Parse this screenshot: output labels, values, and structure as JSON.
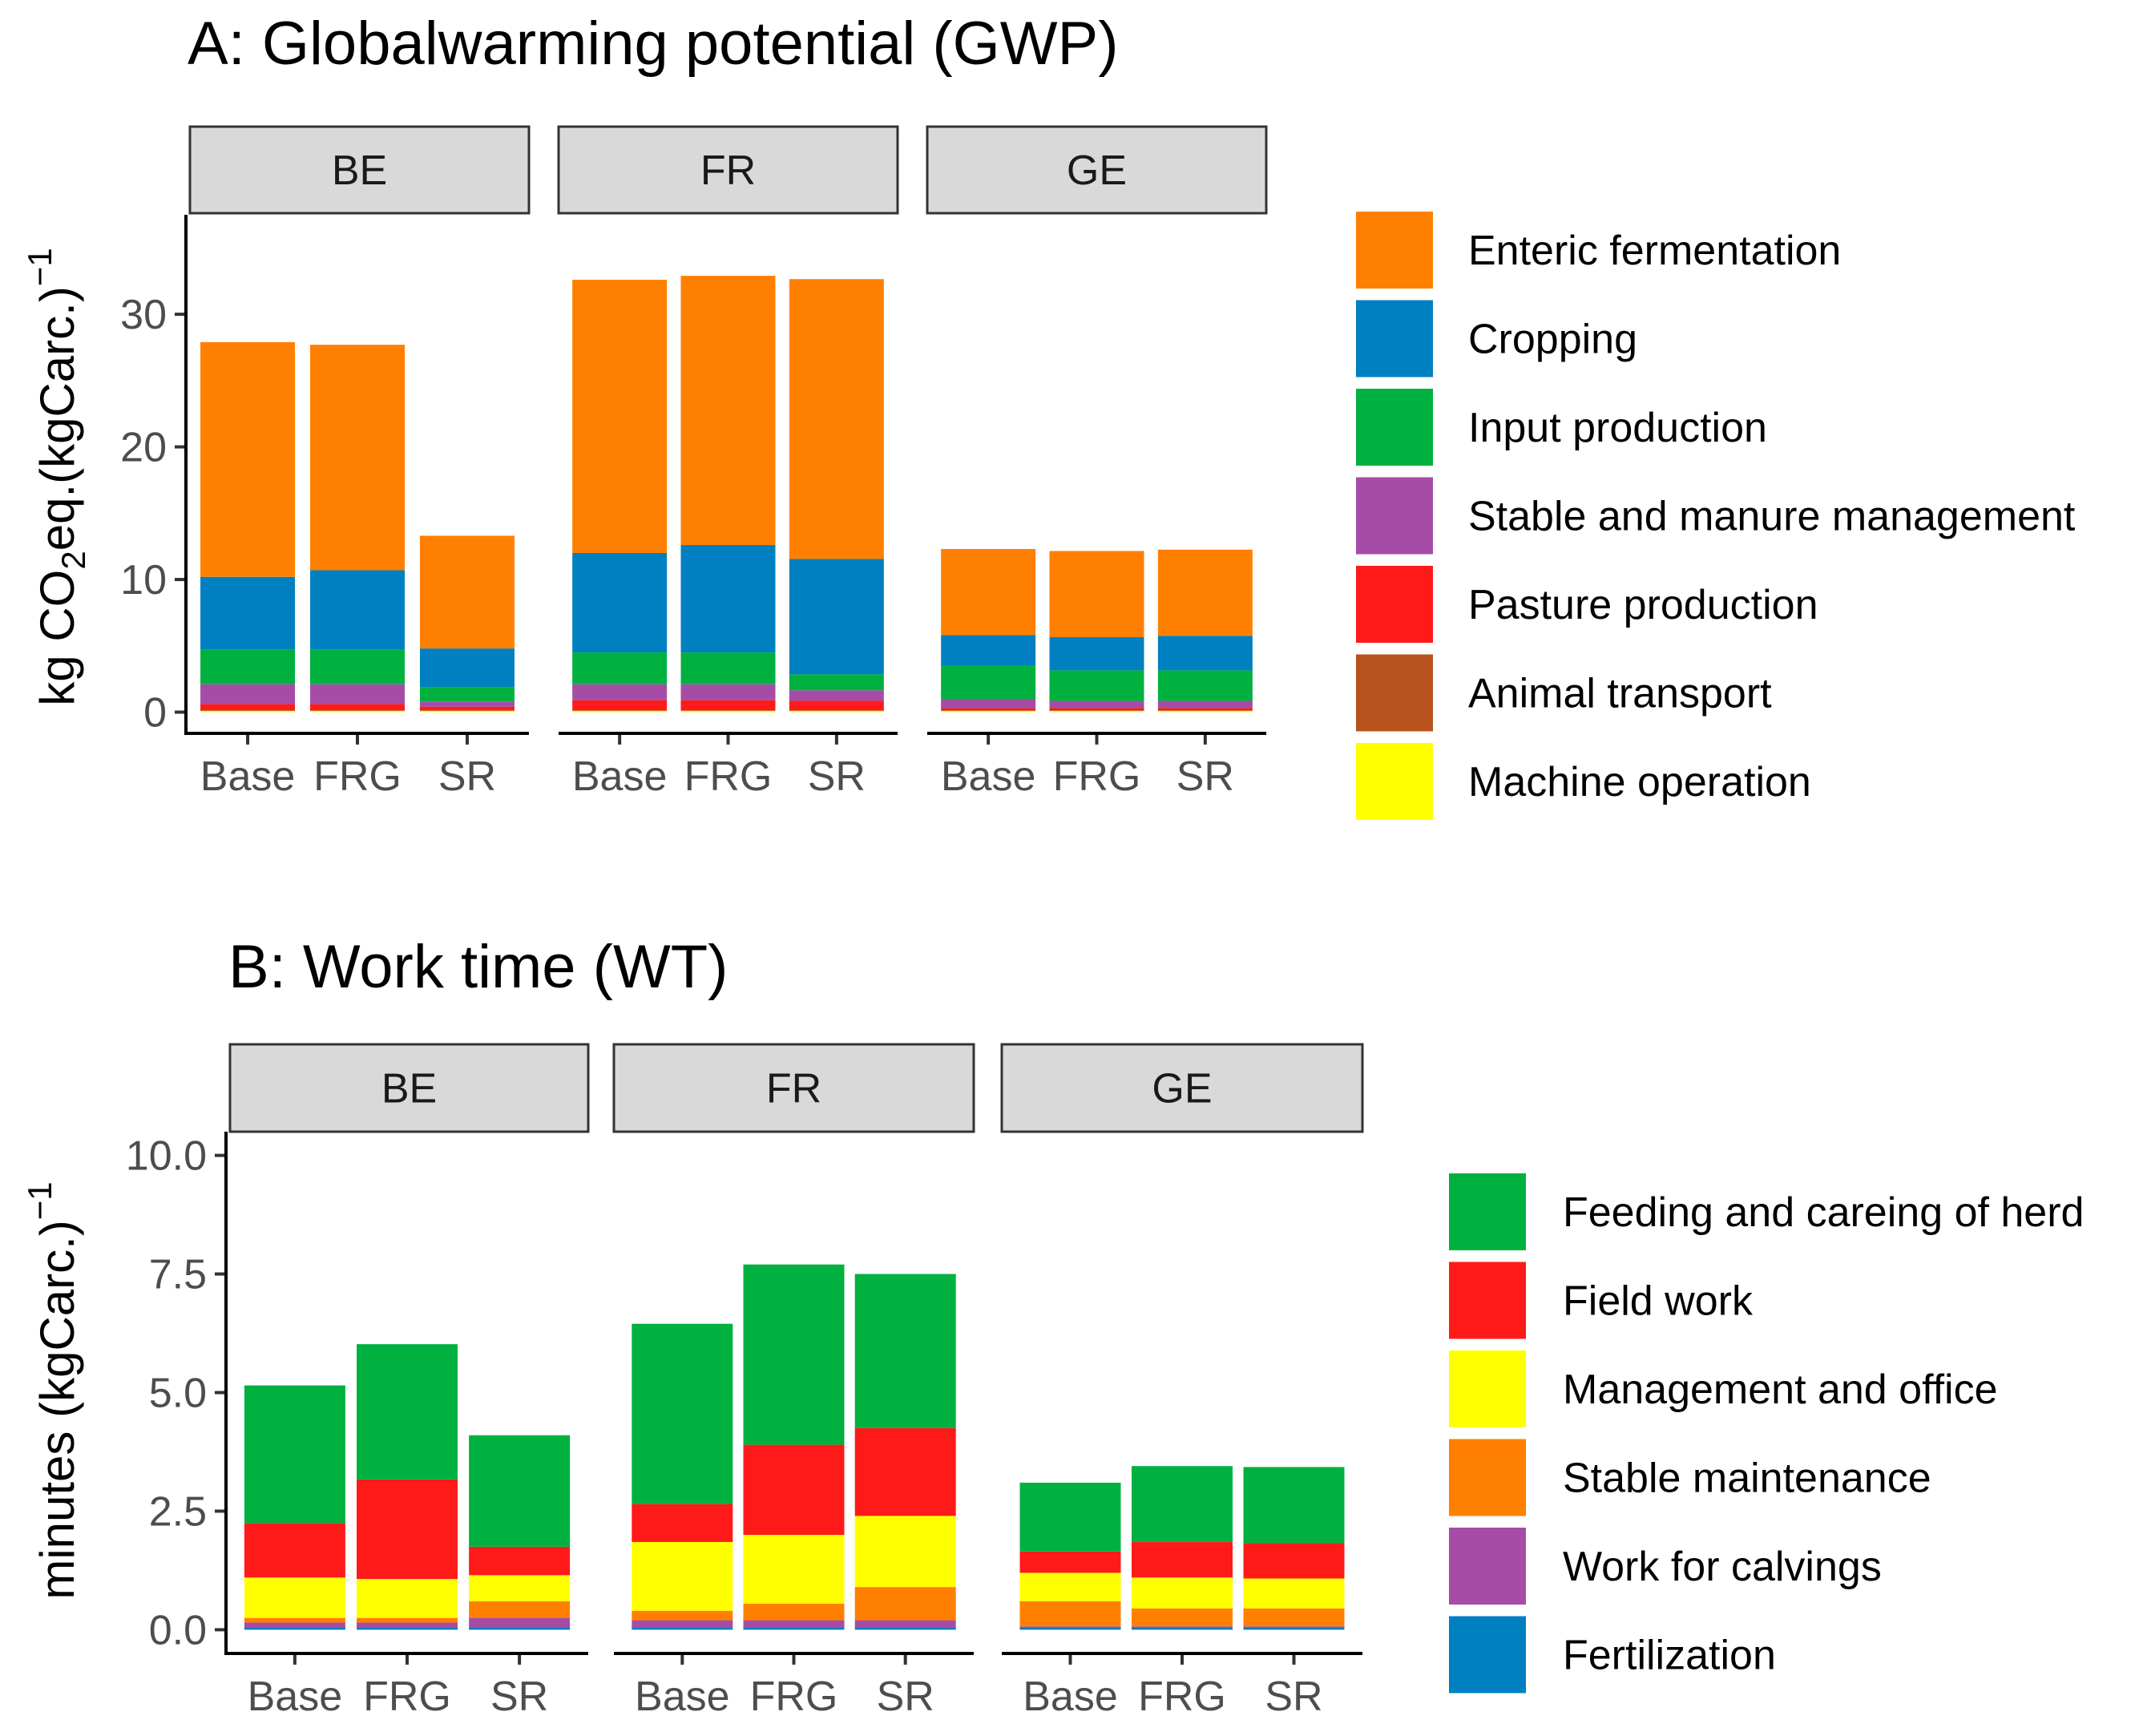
{
  "chart_data": [
    {
      "panel_id": "A",
      "type": "bar",
      "stacked": true,
      "title": "A: Globalwarming potential (GWP)",
      "ylabel": {
        "prefix": "kg CO",
        "subscript": "2",
        "middle": "eq.(kgCarc.)",
        "superscript": "−1"
      },
      "xlabel": "",
      "facets": [
        "BE",
        "FR",
        "GE"
      ],
      "categories": [
        "Base",
        "FRG",
        "SR"
      ],
      "ylim": [
        -1.6,
        37.5
      ],
      "yticks": [
        0,
        10,
        20,
        30
      ],
      "ytick_labels": [
        "0",
        "10",
        "20",
        "30"
      ],
      "legend_position": "right",
      "series": [
        {
          "name": "Machine operation",
          "color": "#FFFF00",
          "values": {
            "BE": [
              0.1,
              0.1,
              0.1
            ],
            "FR": [
              0.1,
              0.1,
              0.1
            ],
            "GE": [
              0.1,
              0.1,
              0.1
            ]
          }
        },
        {
          "name": "Animal transport",
          "color": "#B8531E",
          "values": {
            "BE": [
              0.05,
              0.05,
              0.05
            ],
            "FR": [
              0.05,
              0.05,
              0.05
            ],
            "GE": [
              0.05,
              0.05,
              0.05
            ]
          }
        },
        {
          "name": "Pasture production",
          "color": "#FF1A1A",
          "values": {
            "BE": [
              0.45,
              0.45,
              0.25
            ],
            "FR": [
              0.75,
              0.75,
              0.7
            ],
            "GE": [
              0.15,
              0.15,
              0.15
            ]
          }
        },
        {
          "name": "Stable and manure management",
          "color": "#A64CA6",
          "values": {
            "BE": [
              1.5,
              1.5,
              0.4
            ],
            "FR": [
              1.2,
              1.2,
              0.8
            ],
            "GE": [
              0.7,
              0.55,
              0.55
            ]
          }
        },
        {
          "name": "Input production",
          "color": "#00B140",
          "values": {
            "BE": [
              2.6,
              2.6,
              1.1
            ],
            "FR": [
              2.4,
              2.4,
              1.2
            ],
            "GE": [
              2.5,
              2.3,
              2.3
            ]
          }
        },
        {
          "name": "Cropping",
          "color": "#0080C0",
          "values": {
            "BE": [
              5.5,
              6.0,
              2.9
            ],
            "FR": [
              7.5,
              8.1,
              8.7
            ],
            "GE": [
              2.3,
              2.5,
              2.6
            ]
          }
        },
        {
          "name": "Enteric fermentation",
          "color": "#FF8000",
          "values": {
            "BE": [
              17.7,
              17.0,
              8.5
            ],
            "FR": [
              20.6,
              20.3,
              21.1
            ],
            "GE": [
              6.5,
              6.5,
              6.5
            ]
          }
        }
      ],
      "legend": [
        "Enteric fermentation",
        "Cropping",
        "Input production",
        "Stable and manure management",
        "Pasture production",
        "Animal transport",
        "Machine operation"
      ]
    },
    {
      "panel_id": "B",
      "type": "bar",
      "stacked": true,
      "title": "B: Work time (WT)",
      "ylabel": {
        "prefix": "minutes (kgCarc.)",
        "subscript": "",
        "middle": "",
        "superscript": "−1"
      },
      "xlabel": "",
      "facets": [
        "BE",
        "FR",
        "GE"
      ],
      "categories": [
        "Base",
        "FRG",
        "SR"
      ],
      "ylim": [
        -0.5,
        10.5
      ],
      "yticks": [
        0.0,
        2.5,
        5.0,
        7.5,
        10.0
      ],
      "ytick_labels": [
        "0.0",
        "2.5",
        "5.0",
        "7.5",
        "10.0"
      ],
      "legend_position": "right",
      "series": [
        {
          "name": "Fertilization",
          "color": "#0080C0",
          "values": {
            "BE": [
              0.05,
              0.05,
              0.05
            ],
            "FR": [
              0.05,
              0.05,
              0.05
            ],
            "GE": [
              0.05,
              0.05,
              0.05
            ]
          }
        },
        {
          "name": "Work for calvings",
          "color": "#A64CA6",
          "values": {
            "BE": [
              0.1,
              0.1,
              0.2
            ],
            "FR": [
              0.15,
              0.15,
              0.15
            ],
            "GE": [
              0.02,
              0.02,
              0.02
            ]
          }
        },
        {
          "name": "Stable maintenance",
          "color": "#FF8000",
          "values": {
            "BE": [
              0.1,
              0.1,
              0.35
            ],
            "FR": [
              0.2,
              0.35,
              0.7
            ],
            "GE": [
              0.53,
              0.38,
              0.38
            ]
          }
        },
        {
          "name": "Management and office",
          "color": "#FFFF00",
          "values": {
            "BE": [
              0.85,
              0.82,
              0.55
            ],
            "FR": [
              1.45,
              1.45,
              1.5
            ],
            "GE": [
              0.6,
              0.65,
              0.63
            ]
          }
        },
        {
          "name": "Field work",
          "color": "#FF1A1A",
          "values": {
            "BE": [
              1.15,
              2.1,
              0.6
            ],
            "FR": [
              0.8,
              1.9,
              1.85
            ],
            "GE": [
              0.45,
              0.75,
              0.75
            ]
          }
        },
        {
          "name": "Feeding and careing of herd",
          "color": "#00B140",
          "values": {
            "BE": [
              2.9,
              2.85,
              2.35
            ],
            "FR": [
              3.8,
              3.8,
              3.25
            ],
            "GE": [
              1.45,
              1.6,
              1.6
            ]
          }
        }
      ],
      "legend": [
        "Feeding and careing of herd",
        "Field work",
        "Management and office",
        "Stable maintenance",
        "Work for calvings",
        "Fertilization"
      ]
    }
  ]
}
